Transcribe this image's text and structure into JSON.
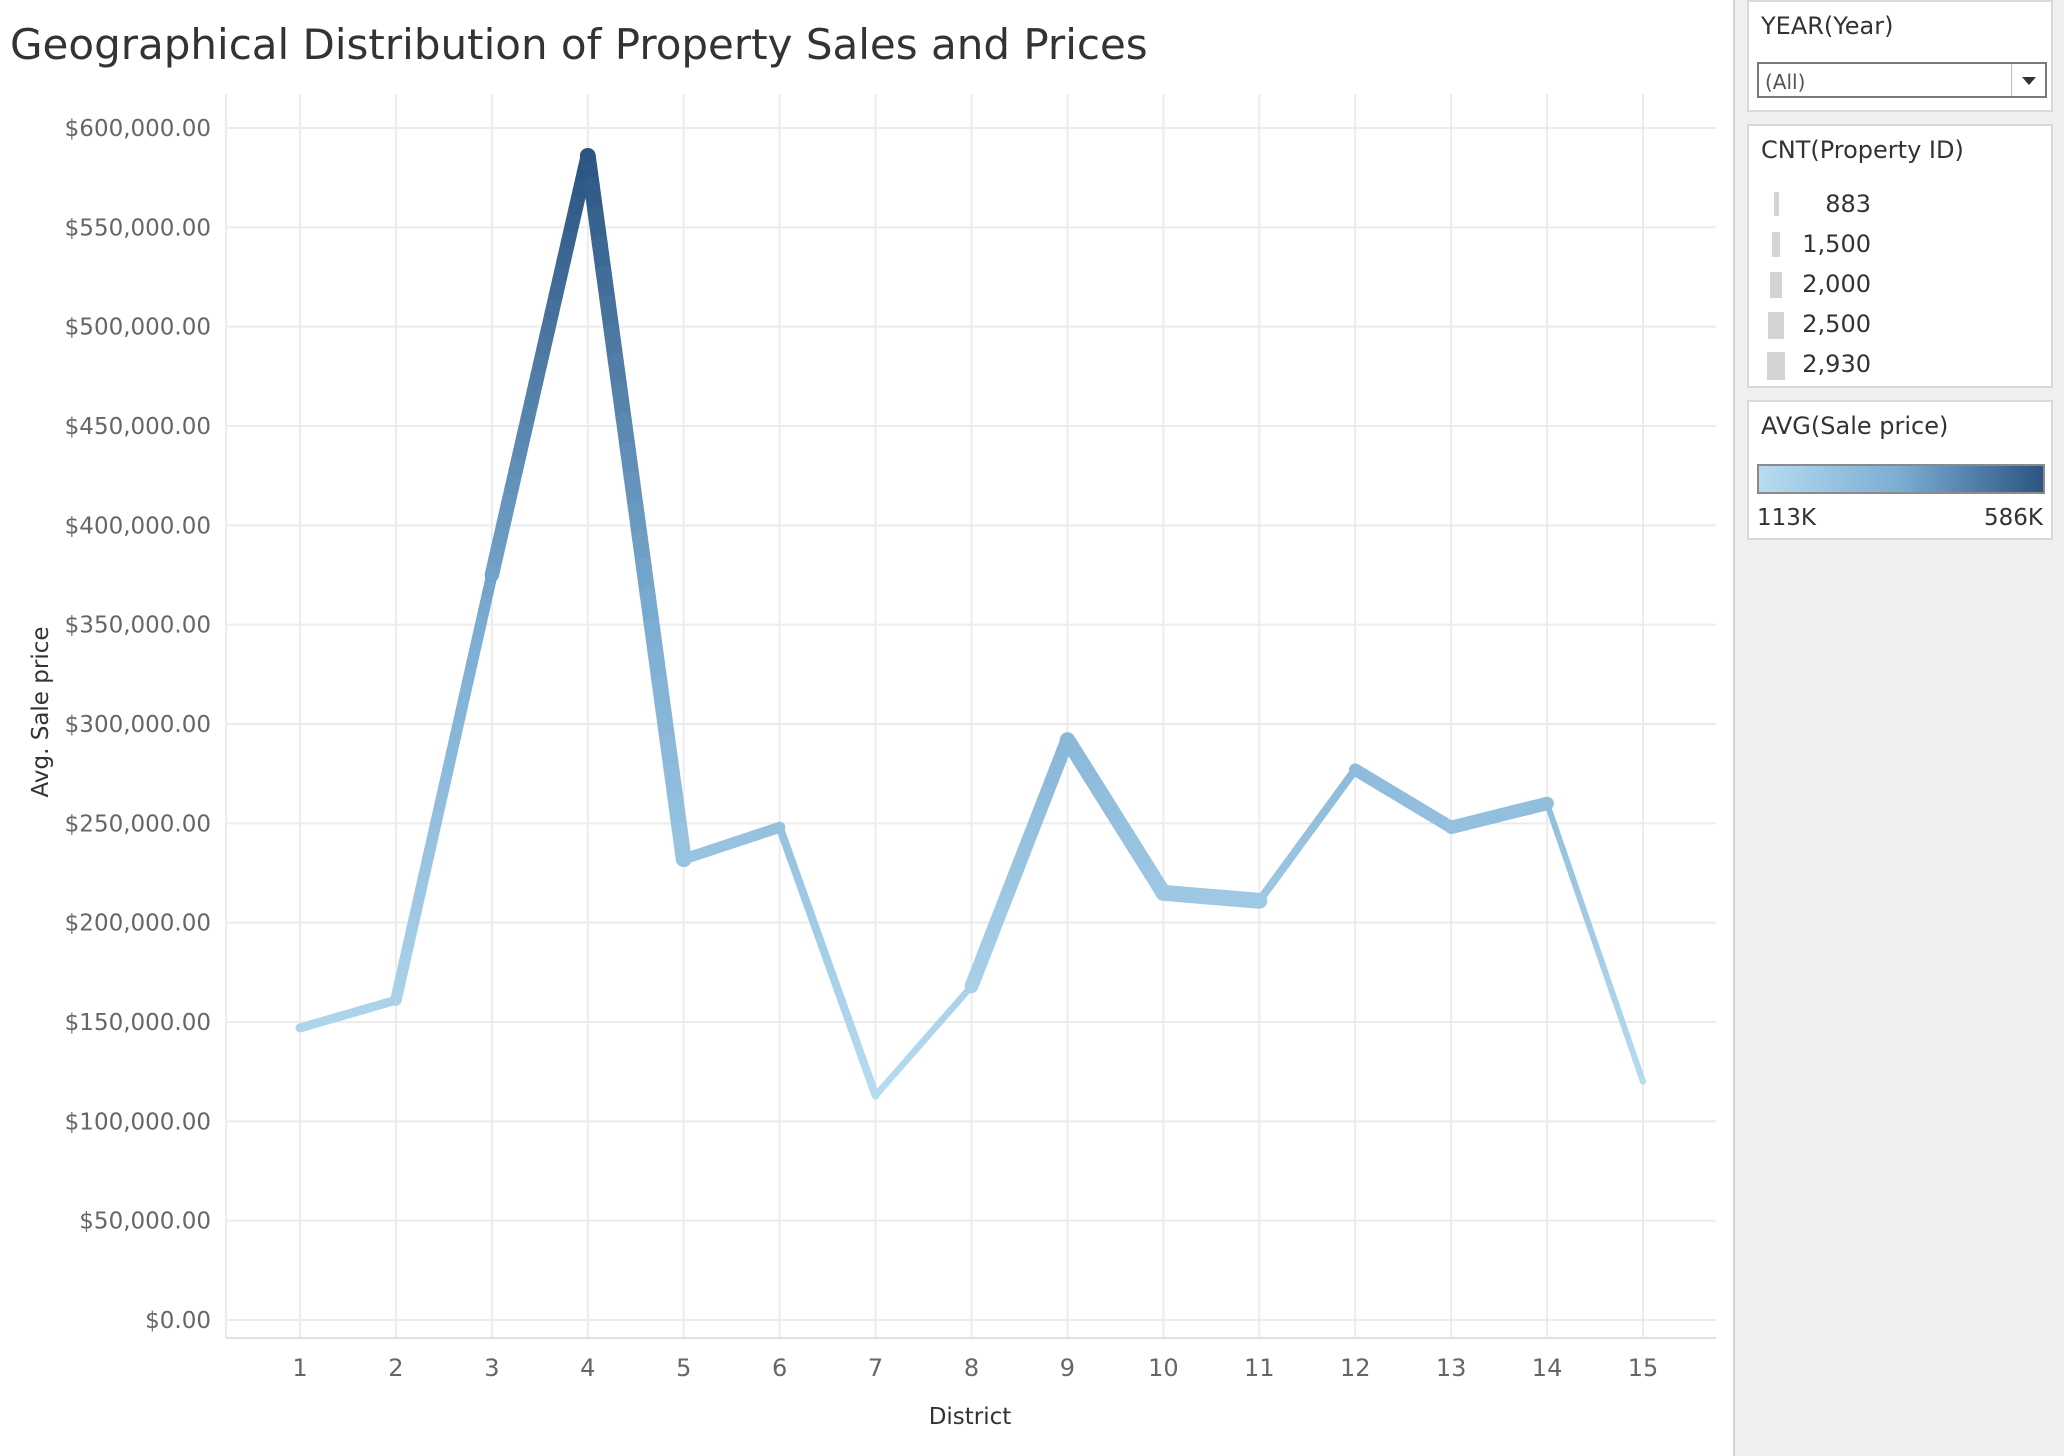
{
  "chart_data": {
    "type": "line",
    "title": "Geographical Distribution of Property Sales and Prices",
    "xlabel": "District",
    "ylabel": "Avg. Sale price",
    "ylim": [
      0,
      600000
    ],
    "y_ticks": [
      0,
      50000,
      100000,
      150000,
      200000,
      250000,
      300000,
      350000,
      400000,
      450000,
      500000,
      550000,
      600000
    ],
    "y_tick_labels": [
      "$0.00",
      "$50,000.00",
      "$100,000.00",
      "$150,000.00",
      "$200,000.00",
      "$250,000.00",
      "$300,000.00",
      "$350,000.00",
      "$400,000.00",
      "$450,000.00",
      "$500,000.00",
      "$550,000.00",
      "$600,000.00"
    ],
    "categories": [
      "1",
      "2",
      "3",
      "4",
      "5",
      "6",
      "7",
      "8",
      "9",
      "10",
      "11",
      "12",
      "13",
      "14",
      "15"
    ],
    "series": [
      {
        "values": [
          147000,
          161000,
          375000,
          586000,
          232000,
          248000,
          113000,
          168000,
          292000,
          215000,
          211000,
          277000,
          248000,
          260000,
          120000
        ],
        "counts": [
          1100,
          1500,
          2000,
          2600,
          2900,
          1900,
          1300,
          1000,
          2500,
          2800,
          2900,
          1300,
          2200,
          2400,
          883
        ]
      }
    ],
    "grid": true,
    "size_legend": {
      "min": 883,
      "max": 2930
    },
    "color_scale": {
      "min": 113000,
      "max": 586000,
      "low": "#b7dcf0",
      "mid": "#7bacd2",
      "high": "#2c5582"
    }
  },
  "filters": {
    "year": {
      "title": "YEAR(Year)",
      "value": "(All)"
    }
  },
  "legend_size": {
    "title": "CNT(Property ID)",
    "items": [
      {
        "label": "883",
        "value": 883
      },
      {
        "label": "1,500",
        "value": 1500
      },
      {
        "label": "2,000",
        "value": 2000
      },
      {
        "label": "2,500",
        "value": 2500
      },
      {
        "label": "2,930",
        "value": 2930
      }
    ]
  },
  "legend_color": {
    "title": "AVG(Sale price)",
    "min_label": "113K",
    "max_label": "586K"
  },
  "colors": {
    "gridline": "#ececec",
    "axis_text": "#666666",
    "legend_mark": "#d4d4d4"
  }
}
